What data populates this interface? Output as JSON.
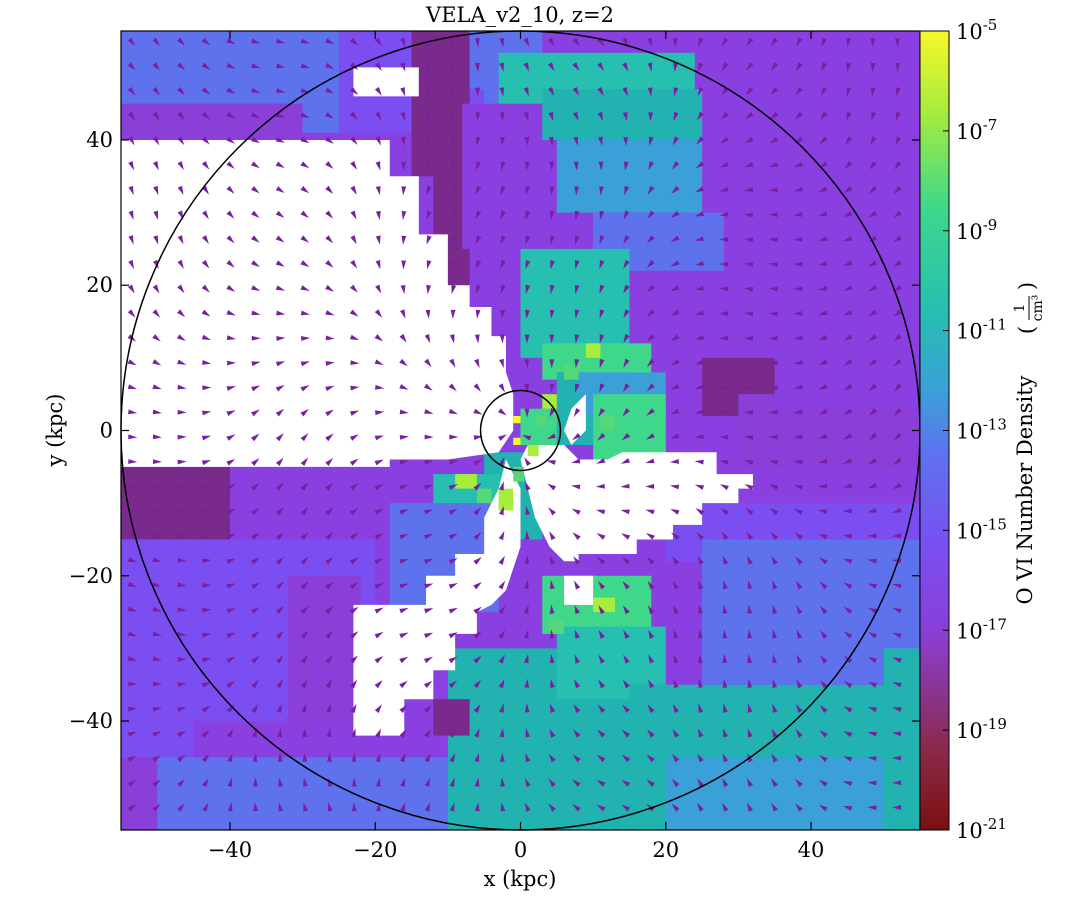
{
  "chart_data": {
    "type": "heatmap",
    "title": "VELA_v2_10, z=2",
    "xlabel": "x  (kpc)",
    "ylabel": "y  (kpc)",
    "xlim": [
      -55,
      55
    ],
    "ylim": [
      -55,
      55
    ],
    "xticks": [
      -40,
      -20,
      0,
      20,
      40
    ],
    "yticks": [
      -40,
      -20,
      0,
      20,
      40
    ],
    "xtick_labels": [
      "−40",
      "−20",
      "0",
      "20",
      "40"
    ],
    "ytick_labels": [
      "−40",
      "−20",
      "0",
      "20",
      "40"
    ],
    "colorbar": {
      "label": "O VI Number Density",
      "unit_numerator": "1",
      "unit_denominator": "cm³",
      "scale": "log",
      "range": [
        1e-21,
        1e-05
      ],
      "colormap": "viridis_r",
      "tick_bases": [
        "10",
        "10",
        "10",
        "10",
        "10",
        "10",
        "10",
        "10",
        "10"
      ],
      "tick_exponents": [
        "-21",
        "-19",
        "-17",
        "-15",
        "-13",
        "-11",
        "-9",
        "-7",
        "-5"
      ],
      "tick_values_log10": [
        -21,
        -19,
        -17,
        -15,
        -13,
        -11,
        -9,
        -7,
        -5
      ]
    },
    "circles": [
      {
        "center": [
          0,
          0
        ],
        "radius_kpc": 55
      },
      {
        "center": [
          0,
          0
        ],
        "radius_kpc": 5.5
      }
    ],
    "overlay": "velocity vectors (quiver), purple arrowheads",
    "colors": {
      "low": "#7a1010",
      "mid_purple": "#8a3fe0",
      "mid_blue": "#5e72ee",
      "teal": "#22b3b0",
      "green": "#55d77a",
      "high": "#f5f52a",
      "arrow": "#7a1fa0",
      "void": "#ffffff"
    },
    "regions_log10_density": [
      {
        "name": "background",
        "value": -16.5
      },
      {
        "name": "upper-left void",
        "value": null
      },
      {
        "name": "central filament",
        "value": -9.5
      },
      {
        "name": "lower-right void",
        "value": null
      },
      {
        "name": "lower-left void",
        "value": null
      },
      {
        "name": "southern clump",
        "value": -10.5
      }
    ]
  }
}
